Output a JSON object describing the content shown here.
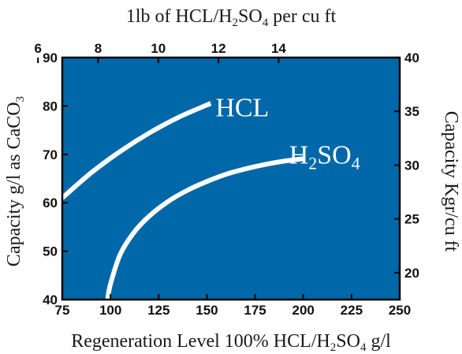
{
  "chart_data": {
    "type": "line",
    "title": "1lb of HCL/H₂SO₄ per cu ft",
    "xlabel": "Regeneration Level 100% HCL/H₂SO₄ g/l",
    "ylabel": "Capacity g/l as CaCO₃",
    "ylabel_right": "Capacity Kgr/cu ft",
    "xlim": [
      75,
      250
    ],
    "ylim": [
      40,
      90
    ],
    "x_ticks": [
      75,
      100,
      125,
      150,
      175,
      200,
      225,
      250
    ],
    "y_ticks": [
      40,
      50,
      60,
      70,
      80,
      90
    ],
    "top_axis": {
      "ticks": [
        6,
        8,
        10,
        12,
        14
      ],
      "tick_positions_x": [
        6.24,
        9.36,
        12.48,
        15.6,
        18.72
      ]
    },
    "right_axis": {
      "ticks": [
        20,
        25,
        30,
        35,
        40
      ],
      "lim": [
        17.5,
        40
      ]
    },
    "plot_background": "#0067a9",
    "line_color": "#ffffff",
    "series": [
      {
        "name": "HCL",
        "label_parts": [
          "HCL"
        ],
        "x": [
          75,
          90,
          105,
          120,
          135,
          150,
          152
        ],
        "y": [
          61,
          66.2,
          70.6,
          74.4,
          77.6,
          80.2,
          80.5
        ]
      },
      {
        "name": "H₂SO₄",
        "label_parts": [
          "H",
          "2",
          "SO",
          "4"
        ],
        "x": [
          98.5,
          100,
          105,
          112,
          120,
          130,
          140,
          150,
          160,
          170,
          180,
          190,
          200
        ],
        "y": [
          40,
          43.2,
          49.3,
          53.8,
          57.2,
          60.3,
          62.6,
          64.4,
          65.9,
          67.0,
          67.9,
          68.6,
          69.1
        ]
      }
    ]
  }
}
